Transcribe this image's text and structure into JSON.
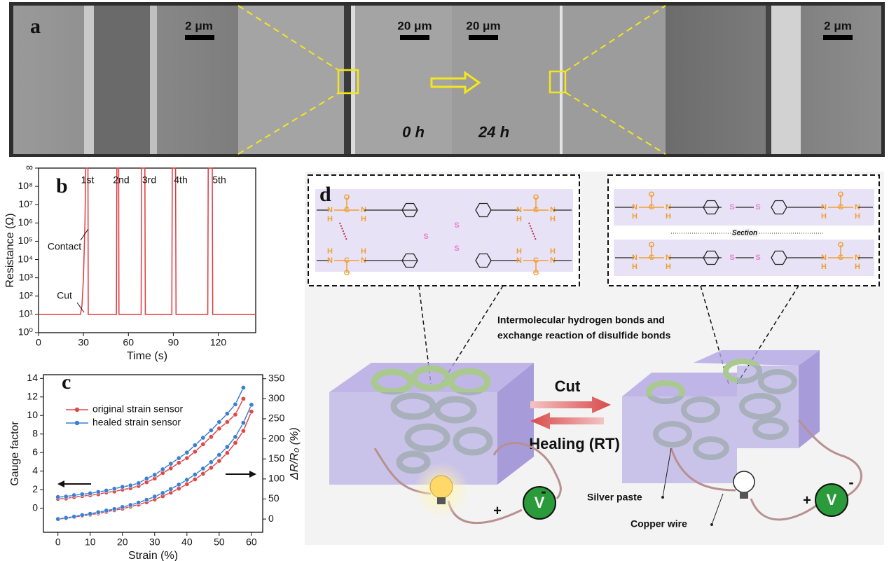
{
  "panel_a": {
    "label": "a",
    "scale_bars": [
      "2 μm",
      "20 μm",
      "20 μm",
      "2 μm"
    ],
    "times": [
      "0 h",
      "24 h"
    ]
  },
  "chart_data": [
    {
      "type": "line",
      "panel_label": "b",
      "x_label": "Time (s)",
      "y_label": "Resistance (Ω)",
      "log_scale": true,
      "xlim": [
        0,
        145
      ],
      "xticks": [
        0,
        30,
        60,
        90,
        120
      ],
      "ylim": [
        1,
        1000000000
      ],
      "yticks": [
        {
          "value": 1,
          "label": "10⁰"
        },
        {
          "value": 10,
          "label": "10¹"
        },
        {
          "value": 100,
          "label": "10²"
        },
        {
          "value": 1000,
          "label": "10³"
        },
        {
          "value": 10000,
          "label": "10⁴"
        },
        {
          "value": 100000,
          "label": "10⁵"
        },
        {
          "value": 1000000,
          "label": "10⁶"
        },
        {
          "value": 10000000,
          "label": "10⁷"
        },
        {
          "value": 100000000,
          "label": "10⁸"
        },
        {
          "value": 1000000000,
          "label": "∞"
        }
      ],
      "series": [
        {
          "color": "#e0393e",
          "x": [
            0,
            28,
            29,
            30,
            31,
            31.5,
            33,
            33.2,
            52,
            52.3,
            53.5,
            53.7,
            68.5,
            68.8,
            71,
            71.3,
            89,
            89.3,
            91.5,
            91.8,
            113,
            113.3,
            116,
            116.3,
            145
          ],
          "values": [
            10,
            10,
            30,
            1000,
            1000000,
            1000000000,
            1000000000,
            10,
            10,
            1000000000,
            1000000000,
            10,
            10,
            1000000000,
            1000000000,
            10,
            10,
            1000000000,
            1000000000,
            10,
            10,
            1000000000,
            1000000000,
            10,
            10
          ]
        }
      ],
      "annotations": [
        "1st",
        "2nd",
        "3rd",
        "4th",
        "5th",
        "Contact",
        "Cut"
      ]
    },
    {
      "type": "line",
      "panel_label": "c",
      "x_label": "Strain (%)",
      "y_label": "Gauge factor",
      "y2_label": "ΔR/R₀ (%)",
      "xlim": [
        -4.5,
        63.5
      ],
      "xticks": [
        0,
        10,
        20,
        30,
        40,
        50,
        60
      ],
      "ylim": [
        -2.6,
        14.4
      ],
      "yticks": [
        0,
        2,
        4,
        6,
        8,
        10,
        12,
        14
      ],
      "y2lim": [
        -33,
        360
      ],
      "y2ticks": [
        0,
        50,
        100,
        150,
        200,
        250,
        300,
        350
      ],
      "series": [
        {
          "name": "original strain sensor",
          "color": "#e04848",
          "x": [
            0,
            2.5,
            5,
            7.5,
            10,
            12.5,
            15,
            17.5,
            20,
            22.5,
            25,
            27.5,
            30,
            32.5,
            35,
            37.5,
            40,
            42.5,
            45,
            47.5,
            50,
            52.5,
            55,
            57.5
          ],
          "values": [
            1.0,
            1.05,
            1.2,
            1.3,
            1.4,
            1.5,
            1.7,
            1.8,
            2.0,
            2.15,
            2.4,
            2.8,
            3.2,
            3.8,
            4.3,
            4.9,
            5.4,
            6.1,
            6.9,
            7.7,
            8.6,
            9.3,
            10.1,
            11.8
          ]
        },
        {
          "name": "healed strain sensor",
          "color": "#3a7fd0",
          "x": [
            0,
            2.5,
            5,
            7.5,
            10,
            12.5,
            15,
            17.5,
            20,
            22.5,
            25,
            27.5,
            30,
            32.5,
            35,
            37.5,
            40,
            42.5,
            45,
            47.5,
            50,
            52.5,
            55,
            57.5
          ],
          "values": [
            1.2,
            1.25,
            1.4,
            1.5,
            1.6,
            1.75,
            1.9,
            2.1,
            2.3,
            2.45,
            2.7,
            3.2,
            3.6,
            4.2,
            4.8,
            5.4,
            6.0,
            6.8,
            7.6,
            8.4,
            9.3,
            10.2,
            11.2,
            13.0
          ]
        },
        {
          "color": "#e04848",
          "axis": "y2",
          "x": [
            0,
            2.5,
            5,
            7.5,
            10,
            12.5,
            15,
            17.5,
            20,
            22.5,
            25,
            27.5,
            30,
            32.5,
            35,
            37.5,
            40,
            42.5,
            45,
            47.5,
            50,
            52.5,
            55,
            57.5,
            60
          ],
          "values": [
            0,
            2,
            5,
            8,
            11,
            14,
            18,
            22,
            26,
            31,
            36,
            42,
            49,
            57,
            66,
            76,
            87,
            99,
            113,
            128,
            145,
            165,
            190,
            220,
            268
          ]
        },
        {
          "color": "#3a7fd0",
          "axis": "y2",
          "x": [
            0,
            2.5,
            5,
            7.5,
            10,
            12.5,
            15,
            17.5,
            20,
            22.5,
            25,
            27.5,
            30,
            32.5,
            35,
            37.5,
            40,
            42.5,
            45,
            47.5,
            50,
            52.5,
            55,
            57.5,
            60
          ],
          "values": [
            0,
            3,
            6,
            10,
            13,
            17,
            21,
            25,
            30,
            35,
            41,
            48,
            56,
            65,
            75,
            86,
            98,
            111,
            126,
            142,
            160,
            180,
            205,
            240,
            285
          ]
        }
      ]
    }
  ],
  "panel_d": {
    "label": "d",
    "atoms": [
      "O",
      "C",
      "N",
      "H",
      "S"
    ],
    "section": "Section",
    "caption": [
      "Intermolecular hydrogen bonds  and",
      "exchange reaction of disulfide bonds"
    ],
    "cut": "Cut",
    "healing": "Healing (RT)",
    "silver_paste": "Silver paste",
    "copper_wire": "Copper wire",
    "plus": "+",
    "minus": "-",
    "volt": "V"
  }
}
